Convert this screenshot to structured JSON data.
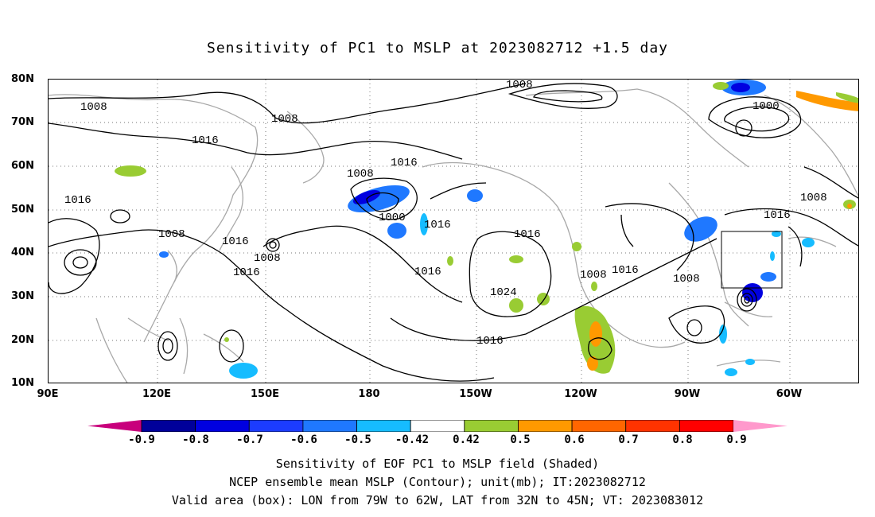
{
  "title": "Sensitivity of PC1 to MSLP at 2023082712 +1.5 day",
  "lat_labels": [
    "80N",
    "70N",
    "60N",
    "50N",
    "40N",
    "30N",
    "20N",
    "10N"
  ],
  "lon_labels": [
    "90E",
    "120E",
    "150E",
    "180",
    "150W",
    "120W",
    "90W",
    "60W"
  ],
  "contour_labels": [
    "1008",
    "1008",
    "1008",
    "1016",
    "1016",
    "1016",
    "1016",
    "1008",
    "1000",
    "1016",
    "1016",
    "1016",
    "1008",
    "1016",
    "1024",
    "1008",
    "1016",
    "1008",
    "1008",
    "1016",
    "1000",
    "1008",
    "1016"
  ],
  "colorbar": {
    "labels": [
      "-0.9",
      "-0.8",
      "-0.7",
      "-0.6",
      "-0.5",
      "-0.42",
      "0.42",
      "0.5",
      "0.6",
      "0.7",
      "0.8",
      "0.9"
    ],
    "colors": [
      "#c8007c",
      "#00009a",
      "#0000e0",
      "#1c3cff",
      "#1f78ff",
      "#16bcff",
      "#ffffff",
      "#99cc33",
      "#ff9900",
      "#ff6600",
      "#ff3300",
      "#ff0000",
      "#ff99cc"
    ]
  },
  "captions": [
    "Sensitivity of EOF PC1 to MSLP field (Shaded)",
    "NCEP ensemble mean MSLP (Contour); unit(mb); IT:2023082712",
    "Valid area (box): LON from 79W to 62W, LAT from 32N to 45N; VT: 2023083012"
  ]
}
